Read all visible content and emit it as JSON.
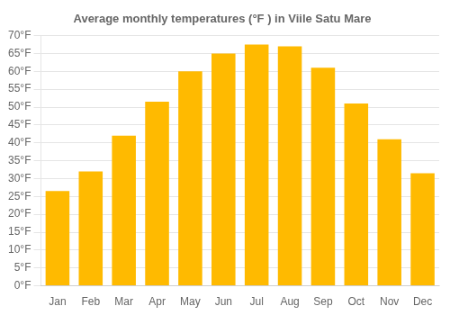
{
  "chart_data": {
    "type": "bar",
    "title": "Average monthly temperatures (°F ) in Viile Satu Mare",
    "categories": [
      "Jan",
      "Feb",
      "Mar",
      "Apr",
      "May",
      "Jun",
      "Jul",
      "Aug",
      "Sep",
      "Oct",
      "Nov",
      "Dec"
    ],
    "values": [
      26.5,
      32,
      42,
      51.5,
      60,
      65,
      67.5,
      67,
      61,
      51,
      41,
      31.5
    ],
    "color": "#FFBA00",
    "ylim": [
      0,
      70
    ],
    "yticks": [
      {
        "value": 0,
        "label": "0°F"
      },
      {
        "value": 5,
        "label": "5°F"
      },
      {
        "value": 10,
        "label": "10°F"
      },
      {
        "value": 15,
        "label": "15°F"
      },
      {
        "value": 20,
        "label": "20°F"
      },
      {
        "value": 25,
        "label": "25°F"
      },
      {
        "value": 30,
        "label": "30°F"
      },
      {
        "value": 35,
        "label": "35°F"
      },
      {
        "value": 40,
        "label": "40°F"
      },
      {
        "value": 45,
        "label": "45°F"
      },
      {
        "value": 50,
        "label": "50°F"
      },
      {
        "value": 55,
        "label": "55°F"
      },
      {
        "value": 60,
        "label": "60°F"
      },
      {
        "value": 65,
        "label": "65°F"
      },
      {
        "value": 70,
        "label": "70°F"
      }
    ],
    "grid": true
  }
}
